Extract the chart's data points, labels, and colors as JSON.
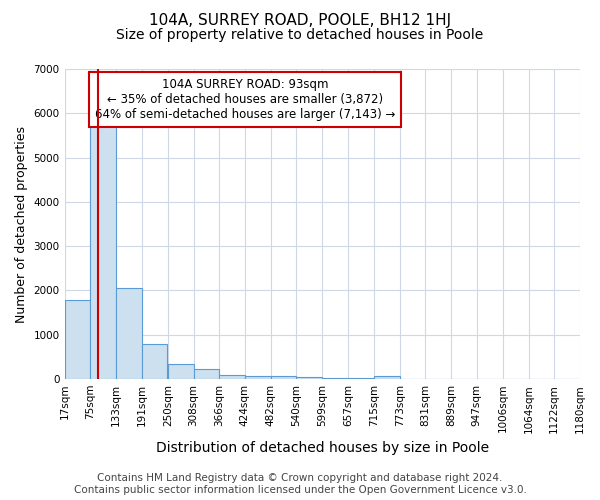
{
  "title": "104A, SURREY ROAD, POOLE, BH12 1HJ",
  "subtitle": "Size of property relative to detached houses in Poole",
  "xlabel": "Distribution of detached houses by size in Poole",
  "ylabel": "Number of detached properties",
  "footer_line1": "Contains HM Land Registry data © Crown copyright and database right 2024.",
  "footer_line2": "Contains public sector information licensed under the Open Government Licence v3.0.",
  "annotation_line1": "104A SURREY ROAD: 93sqm",
  "annotation_line2": "← 35% of detached houses are smaller (3,872)",
  "annotation_line3": "64% of semi-detached houses are larger (7,143) →",
  "property_size": 93,
  "bar_left_edges": [
    17,
    75,
    133,
    191,
    250,
    308,
    366,
    424,
    482,
    540,
    599,
    657,
    715,
    773,
    831,
    889,
    947,
    1006,
    1064,
    1122
  ],
  "bar_heights": [
    1780,
    5780,
    2060,
    790,
    340,
    230,
    100,
    70,
    60,
    40,
    30,
    20,
    70,
    0,
    0,
    0,
    0,
    0,
    0,
    0
  ],
  "bin_width": 58,
  "bar_facecolor": "#cce0f0",
  "bar_edgecolor": "#5b9bd5",
  "redline_color": "#cc0000",
  "annotation_box_edgecolor": "#cc0000",
  "annotation_box_facecolor": "#ffffff",
  "background_color": "#ffffff",
  "grid_color": "#d0d8e8",
  "ylim": [
    0,
    7000
  ],
  "tick_labels": [
    "17sqm",
    "75sqm",
    "133sqm",
    "191sqm",
    "250sqm",
    "308sqm",
    "366sqm",
    "424sqm",
    "482sqm",
    "540sqm",
    "599sqm",
    "657sqm",
    "715sqm",
    "773sqm",
    "831sqm",
    "889sqm",
    "947sqm",
    "1006sqm",
    "1064sqm",
    "1122sqm",
    "1180sqm"
  ],
  "title_fontsize": 11,
  "subtitle_fontsize": 10,
  "xlabel_fontsize": 10,
  "ylabel_fontsize": 9,
  "tick_fontsize": 7.5,
  "annotation_fontsize": 8.5,
  "footer_fontsize": 7.5
}
